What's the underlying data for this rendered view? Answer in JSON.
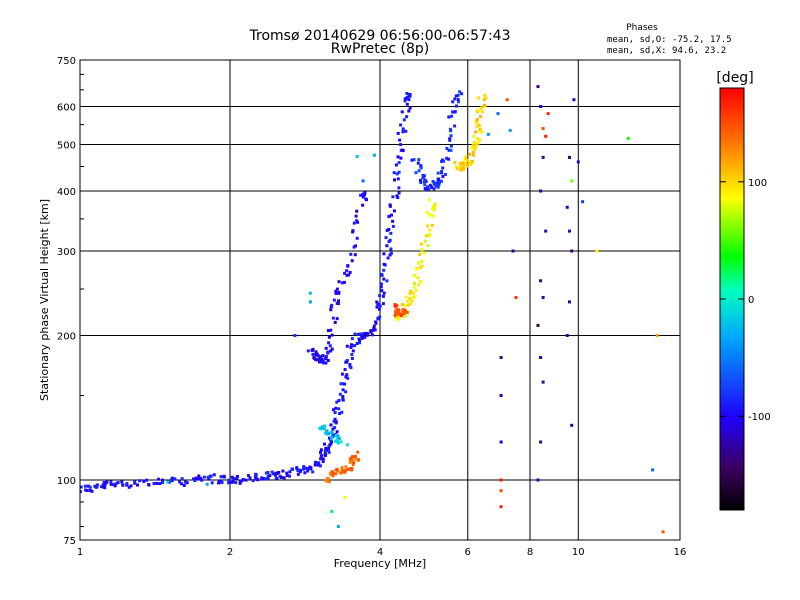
{
  "chart_data": {
    "type": "scatter",
    "title": "Tromsø 20140629 06:56:00-06:57:43",
    "subtitle": "RwPretec (8p)",
    "phases_box": {
      "heading": "Phases",
      "line1": "mean, sd,O: -75.2, 17.5",
      "line2": "mean, sd,X:  94.6, 23.2"
    },
    "xlabel": "Frequency [MHz]",
    "ylabel": "Stationary phase Virtual Height [km]",
    "xscale": "log",
    "yscale": "log",
    "xlim": [
      1,
      16
    ],
    "ylim": [
      75,
      750
    ],
    "xticks": [
      1,
      2,
      4,
      6,
      8,
      10,
      16
    ],
    "xtick_labels": [
      "1",
      "2",
      "4",
      "6",
      "8",
      "10",
      "16"
    ],
    "yticks": [
      75,
      100,
      200,
      300,
      400,
      500,
      600,
      750
    ],
    "ytick_labels": [
      "75",
      "100",
      "200",
      "300",
      "400",
      "500",
      "600",
      "750"
    ],
    "grid": true,
    "colorbar": {
      "label": "[deg]",
      "range": [
        -180,
        180
      ],
      "ticks": [
        100,
        0,
        -100
      ],
      "tick_labels": [
        "100",
        "0",
        "-100"
      ]
    },
    "traces": [
      {
        "name_hidden": "",
        "phase": -95,
        "points": [
          [
            1.0,
            96
          ],
          [
            1.05,
            96
          ],
          [
            1.1,
            97
          ],
          [
            1.15,
            98
          ],
          [
            1.2,
            98
          ],
          [
            1.3,
            99
          ],
          [
            1.4,
            99
          ],
          [
            1.5,
            99
          ],
          [
            1.6,
            99
          ],
          [
            1.7,
            100
          ],
          [
            1.8,
            101
          ],
          [
            1.9,
            100
          ],
          [
            2.0,
            100
          ],
          [
            2.1,
            100
          ],
          [
            2.2,
            101
          ],
          [
            2.3,
            101
          ],
          [
            2.4,
            102
          ],
          [
            2.5,
            102
          ],
          [
            2.6,
            103
          ],
          [
            2.7,
            104
          ],
          [
            2.8,
            105
          ],
          [
            2.9,
            106
          ],
          [
            3.0,
            108
          ],
          [
            3.05,
            111
          ],
          [
            3.1,
            114
          ],
          [
            3.15,
            118
          ],
          [
            3.2,
            124
          ],
          [
            3.25,
            132
          ],
          [
            3.3,
            142
          ],
          [
            3.35,
            152
          ],
          [
            3.4,
            163
          ],
          [
            3.45,
            175
          ],
          [
            3.5,
            189
          ],
          [
            3.6,
            197
          ],
          [
            3.7,
            199
          ],
          [
            3.8,
            201
          ],
          [
            3.9,
            210
          ],
          [
            4.0,
            225
          ],
          [
            4.05,
            245
          ],
          [
            4.1,
            270
          ],
          [
            4.15,
            300
          ],
          [
            4.2,
            330
          ],
          [
            4.25,
            365
          ],
          [
            4.3,
            410
          ],
          [
            4.35,
            460
          ],
          [
            4.4,
            510
          ],
          [
            4.5,
            570
          ],
          [
            4.55,
            630
          ],
          [
            4.6,
            640
          ]
        ]
      },
      {
        "name_hidden": "",
        "phase": -100,
        "points": [
          [
            2.9,
            186
          ],
          [
            2.95,
            182
          ],
          [
            3.0,
            180
          ],
          [
            3.05,
            178
          ],
          [
            3.1,
            178
          ],
          [
            3.15,
            185
          ],
          [
            3.2,
            205
          ],
          [
            3.25,
            230
          ],
          [
            3.3,
            245
          ],
          [
            3.4,
            265
          ],
          [
            3.5,
            290
          ],
          [
            3.6,
            340
          ],
          [
            3.7,
            385
          ],
          [
            3.75,
            395
          ]
        ]
      },
      {
        "name_hidden": "",
        "phase": -85,
        "points": [
          [
            4.7,
            470
          ],
          [
            4.8,
            440
          ],
          [
            4.9,
            420
          ],
          [
            5.0,
            410
          ],
          [
            5.1,
            410
          ],
          [
            5.2,
            415
          ],
          [
            5.3,
            430
          ],
          [
            5.4,
            460
          ],
          [
            5.5,
            500
          ],
          [
            5.6,
            560
          ],
          [
            5.7,
            620
          ],
          [
            5.75,
            640
          ]
        ]
      },
      {
        "name_hidden": "",
        "phase": 90,
        "points": [
          [
            4.35,
            218
          ],
          [
            4.4,
            218
          ],
          [
            4.45,
            222
          ],
          [
            4.5,
            230
          ],
          [
            4.6,
            240
          ],
          [
            4.7,
            255
          ],
          [
            4.8,
            275
          ],
          [
            4.9,
            300
          ],
          [
            5.0,
            330
          ],
          [
            5.05,
            365
          ],
          [
            5.1,
            380
          ]
        ]
      },
      {
        "name_hidden": "",
        "phase": 150,
        "points": [
          [
            4.25,
            228
          ],
          [
            4.35,
            225
          ],
          [
            4.45,
            222
          ],
          [
            4.55,
            225
          ]
        ]
      },
      {
        "name_hidden": "",
        "phase": 100,
        "points": [
          [
            5.7,
            455
          ],
          [
            5.8,
            450
          ],
          [
            5.9,
            450
          ],
          [
            6.0,
            460
          ],
          [
            6.1,
            480
          ],
          [
            6.2,
            500
          ],
          [
            6.3,
            530
          ],
          [
            6.35,
            560
          ],
          [
            6.4,
            600
          ],
          [
            6.45,
            640
          ]
        ]
      },
      {
        "name_hidden": "",
        "phase": 140,
        "points": [
          [
            3.1,
            100
          ],
          [
            3.2,
            102
          ],
          [
            3.3,
            104
          ],
          [
            3.4,
            105
          ],
          [
            3.5,
            107
          ],
          [
            3.55,
            110
          ],
          [
            3.6,
            113
          ]
        ]
      },
      {
        "name_hidden": "",
        "phase": -20,
        "points": [
          [
            3.05,
            130
          ],
          [
            3.1,
            127
          ],
          [
            3.2,
            124
          ],
          [
            3.3,
            122
          ],
          [
            3.4,
            120
          ]
        ]
      }
    ],
    "sparse_points": [
      [
        7.2,
        620,
        150
      ],
      [
        7.3,
        535,
        -40
      ],
      [
        7.4,
        300,
        -120
      ],
      [
        7.5,
        240,
        160
      ],
      [
        7.0,
        180,
        -130
      ],
      [
        7.0,
        150,
        -120
      ],
      [
        7.0,
        120,
        -110
      ],
      [
        7.0,
        100,
        170
      ],
      [
        7.0,
        95,
        150
      ],
      [
        7.0,
        88,
        170
      ],
      [
        8.3,
        660,
        -140
      ],
      [
        8.4,
        600,
        -110
      ],
      [
        8.5,
        540,
        150
      ],
      [
        8.6,
        520,
        170
      ],
      [
        8.7,
        580,
        165
      ],
      [
        8.5,
        470,
        -130
      ],
      [
        8.4,
        400,
        -130
      ],
      [
        8.6,
        330,
        -120
      ],
      [
        8.4,
        260,
        -140
      ],
      [
        8.5,
        240,
        -130
      ],
      [
        8.3,
        210,
        -150
      ],
      [
        8.4,
        180,
        -120
      ],
      [
        8.5,
        160,
        -130
      ],
      [
        8.4,
        120,
        -140
      ],
      [
        8.3,
        100,
        -120
      ],
      [
        9.6,
        470,
        -140
      ],
      [
        9.7,
        420,
        60
      ],
      [
        9.5,
        370,
        -120
      ],
      [
        9.6,
        330,
        -110
      ],
      [
        9.7,
        300,
        -140
      ],
      [
        9.6,
        235,
        -130
      ],
      [
        9.5,
        200,
        -120
      ],
      [
        9.7,
        130,
        -130
      ],
      [
        9.8,
        620,
        -120
      ],
      [
        10.0,
        460,
        -100
      ],
      [
        10.2,
        380,
        -80
      ],
      [
        10.9,
        300,
        90
      ],
      [
        12.6,
        515,
        40
      ],
      [
        14.4,
        200,
        120
      ],
      [
        14.1,
        105,
        -60
      ],
      [
        14.8,
        78,
        150
      ],
      [
        6.9,
        580,
        -60
      ],
      [
        6.6,
        525,
        -40
      ],
      [
        3.6,
        472,
        -20
      ],
      [
        3.9,
        475,
        -30
      ],
      [
        3.7,
        420,
        -60
      ],
      [
        2.9,
        245,
        -20
      ],
      [
        2.9,
        235,
        -40
      ],
      [
        2.7,
        200,
        -80
      ],
      [
        3.4,
        92,
        90
      ],
      [
        3.3,
        80,
        -30
      ],
      [
        3.2,
        86,
        20
      ],
      [
        1.8,
        98,
        -30
      ],
      [
        1.5,
        99,
        -10
      ]
    ]
  }
}
